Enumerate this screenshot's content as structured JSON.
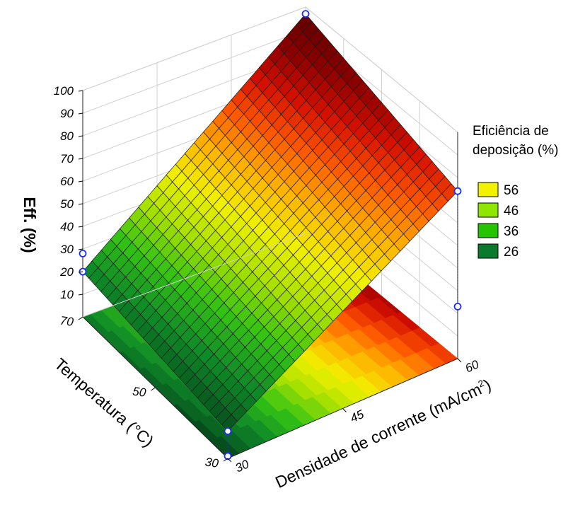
{
  "chart_data": {
    "type": "surface3d",
    "title": "",
    "x_axis": {
      "label": "Densidade de corrente (mA/cm²)",
      "label_base": "Densidade de corrente (mA/cm",
      "label_sup": "2",
      "label_end": ")",
      "range": [
        30,
        60
      ],
      "ticks": [
        "30",
        "45",
        "60"
      ]
    },
    "y_axis": {
      "label": "Temperatura (°C)",
      "range": [
        30,
        70
      ],
      "ticks": [
        "30",
        "50",
        "70"
      ]
    },
    "z_axis": {
      "label": "Eff. (%)",
      "range": [
        10,
        100
      ],
      "ticks": [
        "10",
        "20",
        "30",
        "40",
        "50",
        "60",
        "70",
        "80",
        "90",
        "100"
      ]
    },
    "surface_corners": [
      {
        "density": 30,
        "temperature": 70,
        "eff": 20
      },
      {
        "density": 60,
        "temperature": 70,
        "eff": 97
      },
      {
        "density": 60,
        "temperature": 30,
        "eff": 74
      },
      {
        "density": 30,
        "temperature": 30,
        "eff": 12
      }
    ],
    "observed_points": [
      {
        "density": 30,
        "temperature": 70,
        "eff": 20
      },
      {
        "density": 30,
        "temperature": 70,
        "eff": 28
      },
      {
        "density": 60,
        "temperature": 70,
        "eff": 97
      },
      {
        "density": 60,
        "temperature": 30,
        "eff": 74
      },
      {
        "density": 60,
        "temperature": 30,
        "eff": 23
      },
      {
        "density": 30,
        "temperature": 30,
        "eff": 12
      },
      {
        "density": 30,
        "temperature": 30,
        "eff": 1
      }
    ],
    "legend": {
      "title_line1": "Eficiência de",
      "title_line2": "deposição (%)",
      "placement": "right",
      "entries": [
        {
          "label": "56",
          "color": "#f2f200"
        },
        {
          "label": "46",
          "color": "#8fe600"
        },
        {
          "label": "36",
          "color": "#24c400"
        },
        {
          "label": "26",
          "color": "#0b7a2c"
        }
      ]
    },
    "colormap": [
      "#064f1c",
      "#0f8a28",
      "#34c214",
      "#a6e000",
      "#f0f000",
      "#ffb300",
      "#ff5a00",
      "#d51000",
      "#8a0000",
      "#600000"
    ]
  }
}
